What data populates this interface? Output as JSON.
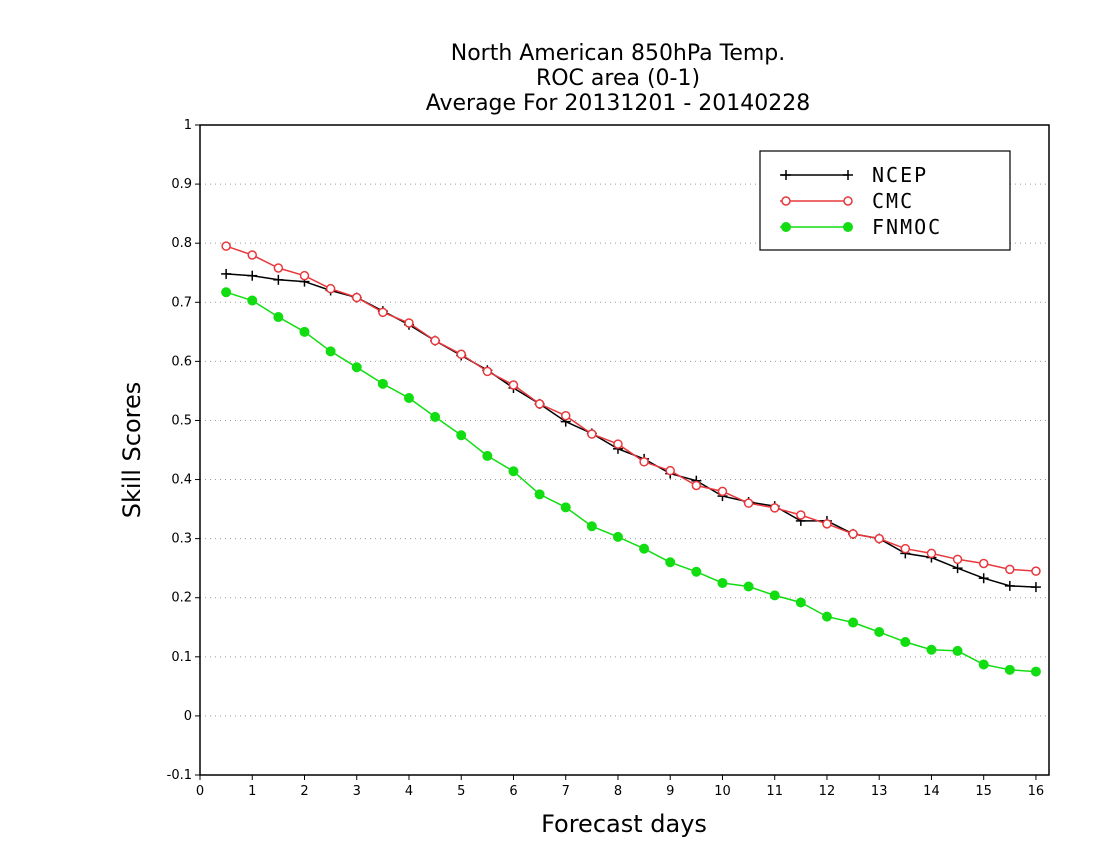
{
  "chart_data": {
    "type": "line",
    "title": [
      "North American 850hPa Temp.",
      "ROC area (0-1)",
      "Average For 20131201 - 20140228"
    ],
    "xlabel": "Forecast days",
    "ylabel": "Skill Scores",
    "xlim": [
      0,
      16.25
    ],
    "ylim": [
      -0.1,
      1
    ],
    "x_ticks": [
      "0",
      "1",
      "2",
      "3",
      "4",
      "5",
      "6",
      "7",
      "8",
      "9",
      "10",
      "11",
      "12",
      "13",
      "14",
      "15",
      "16"
    ],
    "y_ticks": [
      "-0.1",
      "0",
      "0.1",
      "0.2",
      "0.3",
      "0.4",
      "0.5",
      "0.6",
      "0.7",
      "0.8",
      "0.9",
      "1"
    ],
    "grid": "horizontal dotted",
    "legend_position": "top-right",
    "x": [
      0.5,
      1,
      1.5,
      2,
      2.5,
      3,
      3.5,
      4,
      4.5,
      5,
      5.5,
      6,
      6.5,
      7,
      7.5,
      8,
      8.5,
      9,
      9.5,
      10,
      10.5,
      11,
      11.5,
      12,
      12.5,
      13,
      13.5,
      14,
      14.5,
      15,
      15.5,
      16
    ],
    "series": [
      {
        "name": "NCEP",
        "color": "#000000",
        "marker": "plus",
        "values": [
          0.748,
          0.745,
          0.738,
          0.735,
          0.72,
          0.708,
          0.685,
          0.662,
          0.635,
          0.61,
          0.585,
          0.555,
          0.528,
          0.498,
          0.478,
          0.452,
          0.435,
          0.41,
          0.398,
          0.372,
          0.362,
          0.355,
          0.33,
          0.33,
          0.308,
          0.3,
          0.275,
          0.268,
          0.25,
          0.233,
          0.22,
          0.218
        ]
      },
      {
        "name": "CMC",
        "color": "#e8383d",
        "marker": "open-circle",
        "values": [
          0.795,
          0.78,
          0.758,
          0.745,
          0.723,
          0.708,
          0.683,
          0.665,
          0.635,
          0.612,
          0.583,
          0.56,
          0.528,
          0.508,
          0.477,
          0.46,
          0.43,
          0.415,
          0.39,
          0.38,
          0.36,
          0.352,
          0.34,
          0.325,
          0.308,
          0.3,
          0.283,
          0.275,
          0.265,
          0.258,
          0.248,
          0.245
        ]
      },
      {
        "name": "FNMOC",
        "color": "#11dd11",
        "marker": "filled-circle",
        "values": [
          0.717,
          0.703,
          0.675,
          0.65,
          0.617,
          0.59,
          0.562,
          0.538,
          0.506,
          0.475,
          0.44,
          0.414,
          0.375,
          0.353,
          0.321,
          0.303,
          0.283,
          0.26,
          0.244,
          0.225,
          0.219,
          0.204,
          0.192,
          0.168,
          0.158,
          0.142,
          0.125,
          0.112,
          0.11,
          0.087,
          0.078,
          0.075
        ]
      }
    ]
  }
}
